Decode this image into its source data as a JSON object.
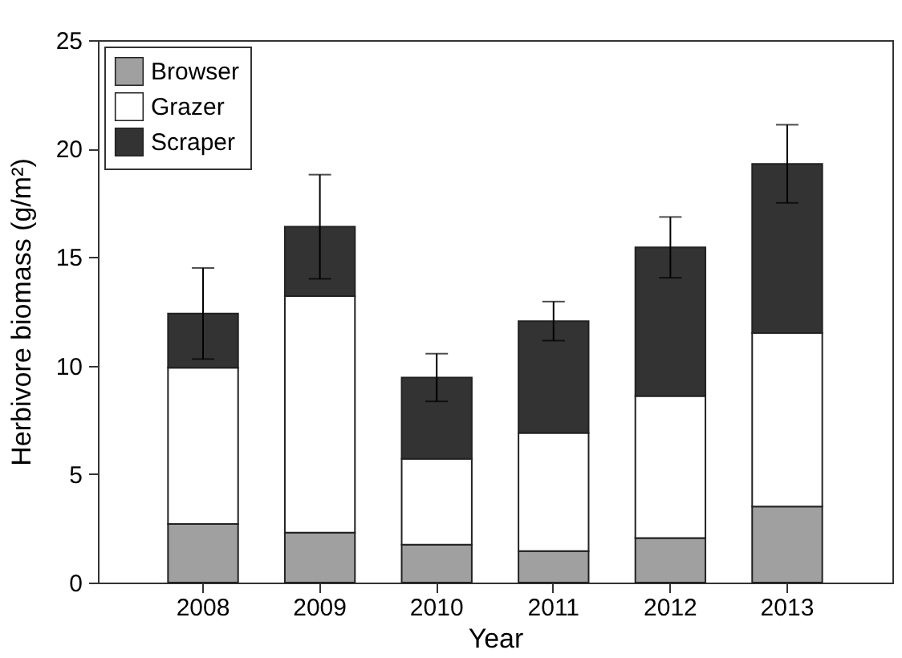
{
  "chart_data": {
    "type": "bar",
    "stacked": true,
    "xlabel": "Year",
    "ylabel": "Herbivore biomass (g/m²)",
    "categories": [
      "2008",
      "2009",
      "2010",
      "2011",
      "2012",
      "2013"
    ],
    "series": [
      {
        "name": "Browser",
        "color": "#a0a0a0",
        "values": [
          2.7,
          2.3,
          1.75,
          1.45,
          2.05,
          3.5
        ]
      },
      {
        "name": "Grazer",
        "color": "#ffffff",
        "values": [
          7.2,
          10.9,
          3.95,
          5.45,
          6.55,
          8.0
        ]
      },
      {
        "name": "Scraper",
        "color": "#333333",
        "values": [
          2.5,
          3.2,
          3.75,
          5.15,
          6.85,
          7.8
        ],
        "errors": [
          2.1,
          2.4,
          1.1,
          0.9,
          1.4,
          1.8
        ]
      }
    ],
    "ylim": [
      0,
      25
    ],
    "yticks": [
      0,
      5,
      10,
      15,
      20,
      25
    ],
    "grid": false,
    "legend": "top left"
  }
}
